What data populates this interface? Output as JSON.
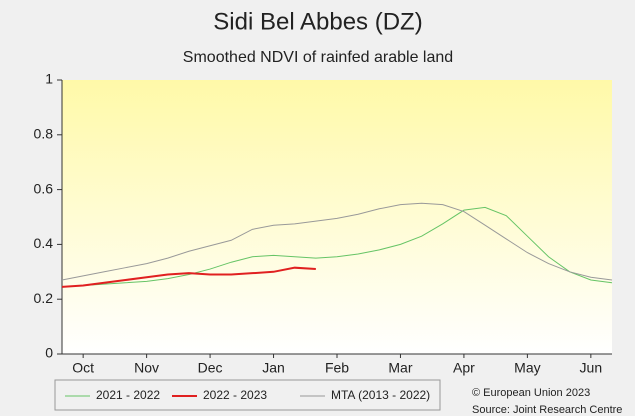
{
  "chart_data": {
    "type": "line",
    "title": "Sidi Bel Abbes (DZ)",
    "subtitle": "Smoothed NDVI of rainfed arable land",
    "x": [
      0,
      1,
      2,
      3,
      4,
      5,
      6,
      7,
      8,
      9,
      10,
      11,
      12,
      13,
      14,
      15,
      16,
      17,
      18,
      19,
      20,
      21,
      22,
      23,
      24,
      25,
      26
    ],
    "xlim": [
      0,
      26
    ],
    "xticks": [
      {
        "value": 1,
        "label": "Oct"
      },
      {
        "value": 4,
        "label": "Nov"
      },
      {
        "value": 7,
        "label": "Dec"
      },
      {
        "value": 10,
        "label": "Jan"
      },
      {
        "value": 13,
        "label": "Feb"
      },
      {
        "value": 16,
        "label": "Mar"
      },
      {
        "value": 19,
        "label": "Apr"
      },
      {
        "value": 22,
        "label": "May"
      },
      {
        "value": 25,
        "label": "Jun"
      }
    ],
    "ylim": [
      0,
      1
    ],
    "yticks": [
      0,
      0.2,
      0.4,
      0.6,
      0.8,
      1
    ],
    "series": [
      {
        "name": "2021 - 2022",
        "color": "#66c466",
        "width": 1,
        "values": [
          0.245,
          0.25,
          0.255,
          0.26,
          0.265,
          0.275,
          0.29,
          0.31,
          0.335,
          0.355,
          0.36,
          0.355,
          0.35,
          0.355,
          0.365,
          0.38,
          0.4,
          0.43,
          0.475,
          0.525,
          0.535,
          0.505,
          0.43,
          0.355,
          0.3,
          0.27,
          0.26
        ]
      },
      {
        "name": "2022 - 2023",
        "color": "#e02020",
        "width": 2,
        "values": [
          0.245,
          0.25,
          0.26,
          0.27,
          0.28,
          0.29,
          0.295,
          0.29,
          0.29,
          0.295,
          0.3,
          0.315,
          0.31,
          null,
          null,
          null,
          null,
          null,
          null,
          null,
          null,
          null,
          null,
          null,
          null,
          null,
          null
        ]
      },
      {
        "name": "MTA (2013 - 2022)",
        "color": "#999999",
        "width": 1,
        "values": [
          0.27,
          0.285,
          0.3,
          0.315,
          0.33,
          0.35,
          0.375,
          0.395,
          0.415,
          0.455,
          0.47,
          0.475,
          0.485,
          0.495,
          0.51,
          0.53,
          0.545,
          0.55,
          0.545,
          0.52,
          0.47,
          0.42,
          0.37,
          0.33,
          0.3,
          0.28,
          0.27
        ]
      }
    ],
    "credits": [
      "© European Union 2023",
      "Source: Joint Research Centre"
    ]
  }
}
